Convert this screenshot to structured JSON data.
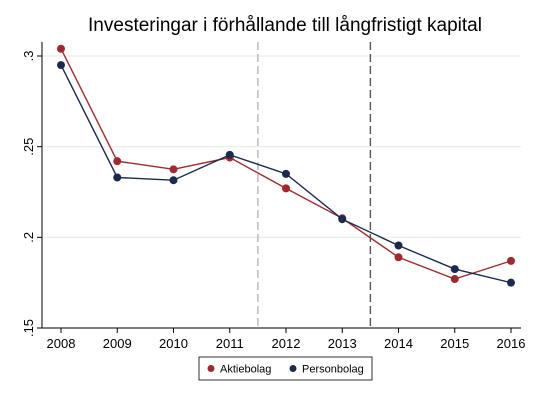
{
  "chart_data": {
    "type": "line",
    "title": "Investeringar i förhållande till långfristigt kapital",
    "xlabel": "",
    "ylabel": "",
    "x": [
      2008,
      2009,
      2010,
      2011,
      2012,
      2013,
      2014,
      2015,
      2016
    ],
    "x_tick_labels": [
      "2008",
      "2009",
      "2010",
      "2011",
      "2012",
      "2013",
      "2014",
      "2015",
      "2016"
    ],
    "y_ticks": [
      0.15,
      0.2,
      0.25,
      0.3
    ],
    "y_tick_labels": [
      ".15",
      ".2",
      ".25",
      ".3"
    ],
    "xlim": [
      2008,
      2016
    ],
    "ylim": [
      0.15,
      0.3
    ],
    "grid": true,
    "series": [
      {
        "name": "Aktiebolag",
        "color": "#9e2a2f",
        "values": [
          0.304,
          0.242,
          0.2375,
          0.244,
          0.227,
          0.2105,
          0.189,
          0.177,
          0.187
        ]
      },
      {
        "name": "Personbolag",
        "color": "#1a2a4f",
        "values": [
          0.295,
          0.233,
          0.2315,
          0.2455,
          0.235,
          0.21,
          0.1955,
          0.1825,
          0.175
        ]
      }
    ],
    "reference_lines": [
      {
        "x": 2011.5,
        "style": "dashed",
        "color": "#b5b5b5"
      },
      {
        "x": 2013.5,
        "style": "dashed",
        "color": "#555555"
      }
    ],
    "legend": {
      "placement": "bottom-center"
    }
  }
}
